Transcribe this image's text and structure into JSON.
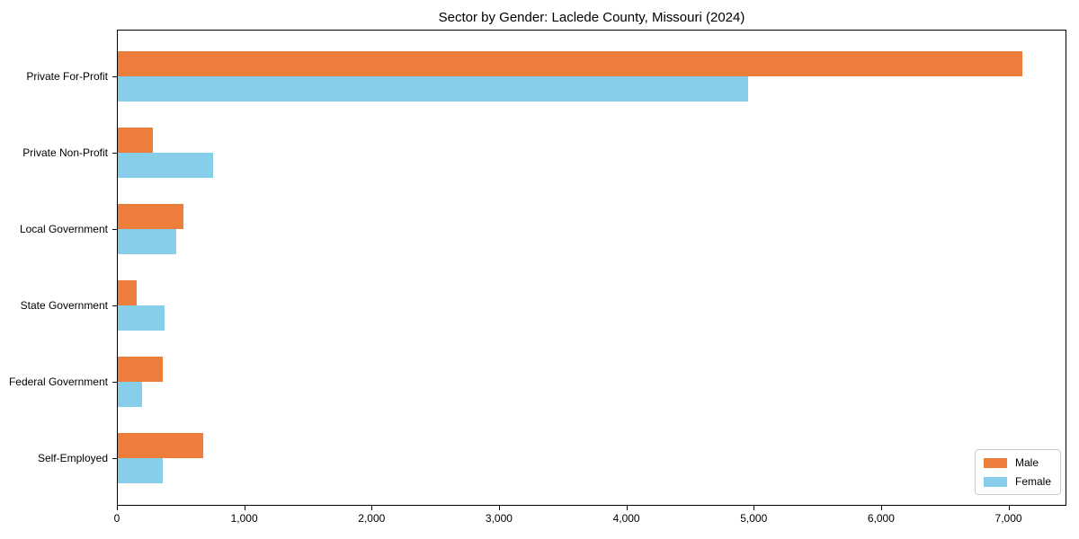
{
  "figure": {
    "title": "Sector by Gender: Laclede County, Missouri (2024)"
  },
  "colors": {
    "male": "#ED7D3A",
    "female": "#87CEEB",
    "axis": "#000000",
    "legend_border": "#cccccc",
    "background": "#ffffff"
  },
  "chart_data": {
    "type": "bar",
    "orientation": "horizontal",
    "title": "Sector by Gender: Laclede County, Missouri (2024)",
    "categories": [
      "Private For-Profit",
      "Private Non-Profit",
      "Local Government",
      "State Government",
      "Federal Government",
      "Self-Employed"
    ],
    "series": [
      {
        "name": "Male",
        "color": "#ED7D3A",
        "values": [
          7100,
          275,
          515,
          150,
          350,
          670
        ]
      },
      {
        "name": "Female",
        "color": "#87CEEB",
        "values": [
          4950,
          750,
          460,
          365,
          190,
          355
        ]
      }
    ],
    "xlabel": "",
    "ylabel": "",
    "xlim": [
      0,
      7455
    ],
    "xticks": [
      {
        "value": 0,
        "label": "0"
      },
      {
        "value": 1000,
        "label": "1,000"
      },
      {
        "value": 2000,
        "label": "2,000"
      },
      {
        "value": 3000,
        "label": "3,000"
      },
      {
        "value": 4000,
        "label": "4,000"
      },
      {
        "value": 5000,
        "label": "5,000"
      },
      {
        "value": 6000,
        "label": "6,000"
      },
      {
        "value": 7000,
        "label": "7,000"
      }
    ],
    "grid": false,
    "legend": {
      "position": "lower right",
      "items": [
        {
          "label": "Male",
          "color": "#ED7D3A"
        },
        {
          "label": "Female",
          "color": "#87CEEB"
        }
      ]
    }
  }
}
